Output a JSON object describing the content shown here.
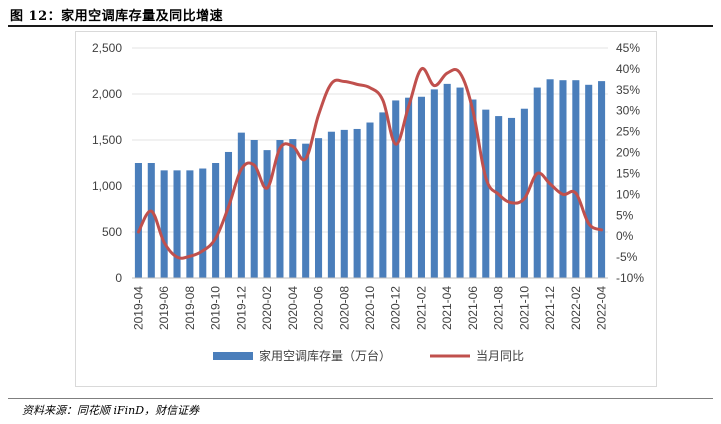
{
  "header": {
    "figure_title": "图 12：家用空调库存量及同比增速"
  },
  "footer": {
    "source": "资料来源：同花顺 iFinD，财信证券"
  },
  "chart_data": {
    "type": "bar",
    "title": "家用空调库存量及同比增速",
    "xlabel": "",
    "ylabel": "",
    "ylim": [
      0,
      2500
    ],
    "y2lim": [
      -10,
      45
    ],
    "y_ticks": [
      "2,500",
      "2,000",
      "1,500",
      "1,000",
      "500",
      "0"
    ],
    "y2_ticks": [
      "45%",
      "40%",
      "35%",
      "30%",
      "25%",
      "20%",
      "15%",
      "10%",
      "5%",
      "0%",
      "-5%",
      "-10%"
    ],
    "categories": [
      "2019-04",
      "2019-05",
      "2019-06",
      "2019-07",
      "2019-08",
      "2019-09",
      "2019-10",
      "2019-11",
      "2019-12",
      "2020-01",
      "2020-02",
      "2020-03",
      "2020-04",
      "2020-05",
      "2020-06",
      "2020-07",
      "2020-08",
      "2020-09",
      "2020-10",
      "2020-11",
      "2020-12",
      "2021-01",
      "2021-02",
      "2021-03",
      "2021-04",
      "2021-05",
      "2021-06",
      "2021-07",
      "2021-08",
      "2021-09",
      "2021-10",
      "2021-11",
      "2021-12",
      "2022-01",
      "2022-02",
      "2022-03",
      "2022-04"
    ],
    "x_tick_labels": [
      "2019-04",
      "2019-06",
      "2019-08",
      "2019-10",
      "2019-12",
      "2020-02",
      "2020-04",
      "2020-06",
      "2020-08",
      "2020-10",
      "2020-12",
      "2021-02",
      "2021-04",
      "2021-06",
      "2021-08",
      "2021-10",
      "2021-12",
      "2022-02",
      "2022-04"
    ],
    "series": [
      {
        "name": "家用空调库存量（万台）",
        "type": "bar",
        "axis": "left",
        "color": "#4a7ebb",
        "values": [
          1250,
          1250,
          1170,
          1170,
          1170,
          1190,
          1250,
          1370,
          1580,
          1500,
          1390,
          1500,
          1510,
          1460,
          1520,
          1590,
          1610,
          1620,
          1690,
          1800,
          1930,
          1960,
          1970,
          2050,
          2110,
          2070,
          1940,
          1830,
          1760,
          1740,
          1840,
          2070,
          2160,
          2150,
          2150,
          2100,
          2140
        ]
      },
      {
        "name": "当月同比",
        "type": "line",
        "axis": "right",
        "color": "#c0504d",
        "values": [
          1.0,
          6.0,
          -1.5,
          -5.0,
          -4.8,
          -3.5,
          -0.5,
          7.0,
          16.0,
          17.0,
          11.5,
          21.0,
          21.5,
          18.5,
          29.0,
          36.5,
          37.0,
          36.3,
          35.5,
          32.5,
          22.0,
          31.0,
          40.0,
          36.0,
          39.0,
          39.0,
          30.0,
          14.0,
          10.0,
          8.0,
          9.0,
          15.0,
          12.5,
          10.0,
          10.3,
          3.0,
          1.5
        ]
      }
    ],
    "legend_position": "bottom"
  }
}
